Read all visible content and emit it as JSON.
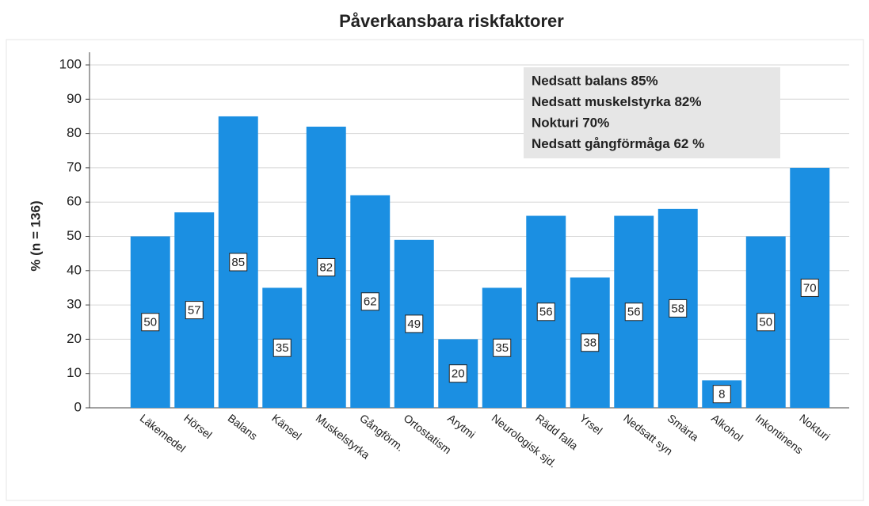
{
  "chart_data": {
    "type": "bar",
    "title": "Påverkansbara riskfaktorer",
    "ylabel": "% (n = 136)",
    "categories": [
      "Läkemedel",
      "Hörsel",
      "Balans",
      "Känsel",
      "Muskelstyrka",
      "Gångförm.",
      "Ortostatism",
      "Arytmi",
      "Neurologisk sjd.",
      "Rädd falla",
      "Yrsel",
      "Nedsatt syn",
      "Smärta",
      "Alkohol",
      "Inkontinens",
      "Nokturi"
    ],
    "values": [
      50,
      57,
      85,
      35,
      82,
      62,
      49,
      20,
      35,
      56,
      38,
      56,
      58,
      8,
      50,
      70
    ],
    "color": "#1b8fe2",
    "ylim": [
      0,
      100
    ],
    "yticks": [
      0,
      10,
      20,
      30,
      40,
      50,
      60,
      70,
      80,
      90,
      100
    ],
    "grid": true,
    "annotations": [
      "Nedsatt balans 85%",
      "Nedsatt muskelstyrka 82%",
      "Nokturi 70%",
      "Nedsatt gångförmåga 62 %"
    ]
  }
}
